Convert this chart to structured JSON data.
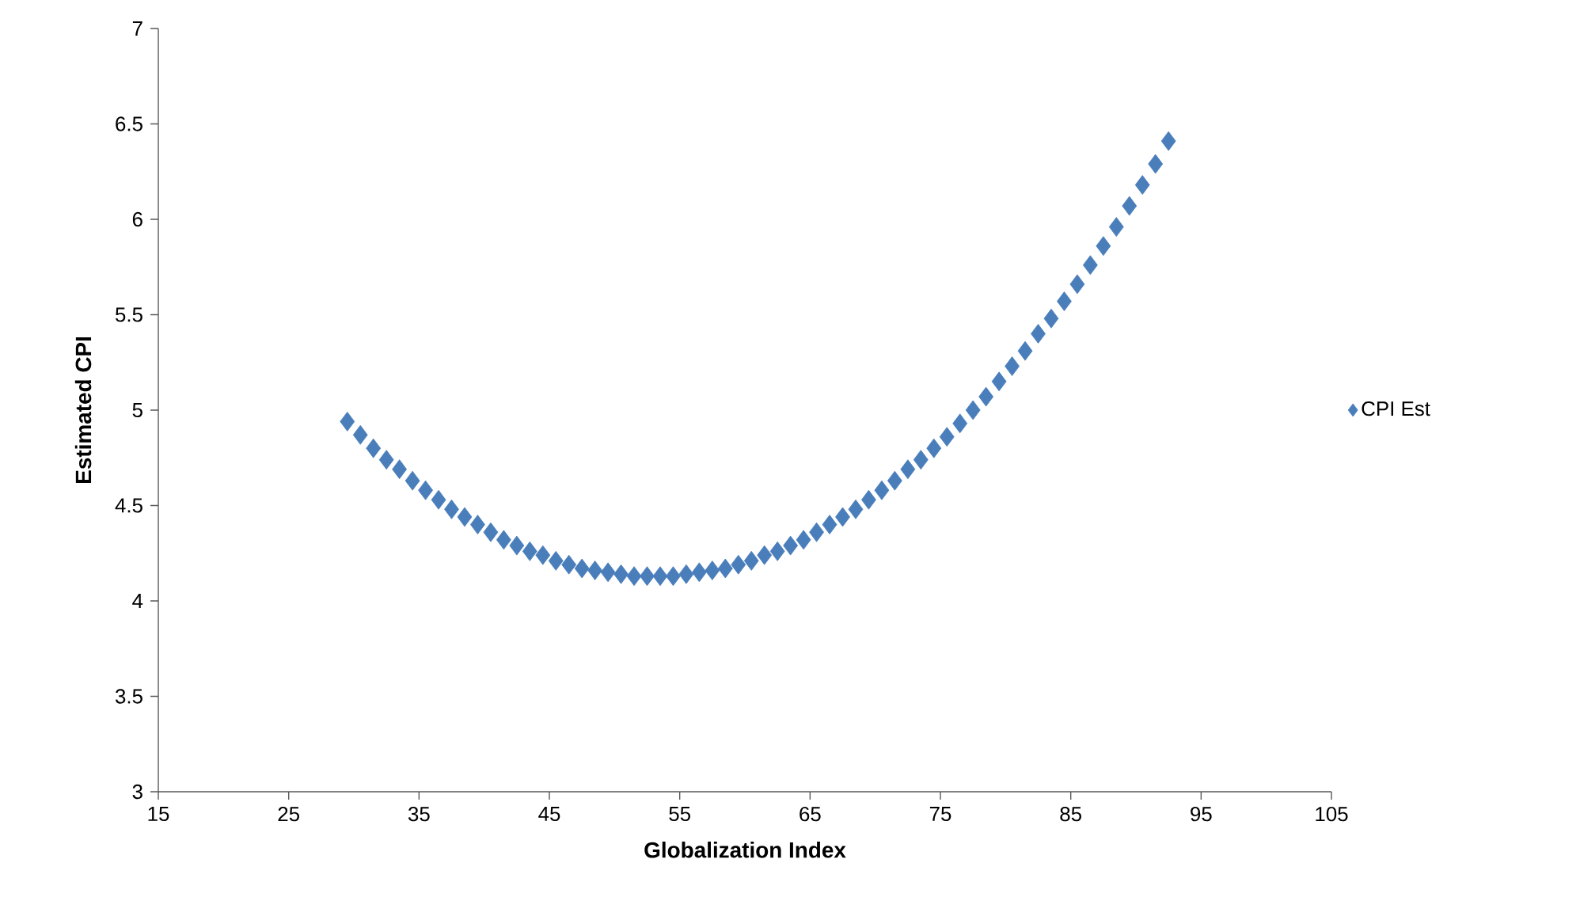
{
  "chart_data": {
    "type": "scatter",
    "xlabel": "Globalization Index",
    "ylabel": "Estimated CPI",
    "xlim": [
      15,
      105
    ],
    "xticks": [
      15,
      25,
      35,
      45,
      55,
      65,
      75,
      85,
      95,
      105
    ],
    "ylim": [
      3,
      7
    ],
    "yticks": [
      3,
      3.5,
      4,
      4.5,
      5,
      5.5,
      6,
      6.5,
      7
    ],
    "grid": false,
    "legend": "right",
    "marker": "diamond",
    "series": [
      {
        "name": "CPI Est",
        "color": "#4a7ebb",
        "x": [
          29.5,
          30.5,
          31.5,
          32.5,
          33.5,
          34.5,
          35.5,
          36.5,
          37.5,
          38.5,
          39.5,
          40.5,
          41.5,
          42.5,
          43.5,
          44.5,
          45.5,
          46.5,
          47.5,
          48.5,
          49.5,
          50.5,
          51.5,
          52.5,
          53.5,
          54.5,
          55.5,
          56.5,
          57.5,
          58.5,
          59.5,
          60.5,
          61.5,
          62.5,
          63.5,
          64.5,
          65.5,
          66.5,
          67.5,
          68.5,
          69.5,
          70.5,
          71.5,
          72.5,
          73.5,
          74.5,
          75.5,
          76.5,
          77.5,
          78.5,
          79.5,
          80.5,
          81.5,
          82.5,
          83.5,
          84.5,
          85.5,
          86.5,
          87.5,
          88.5,
          89.5,
          90.5,
          91.5,
          92.5
        ],
        "values": [
          4.94,
          4.87,
          4.8,
          4.74,
          4.69,
          4.63,
          4.58,
          4.53,
          4.48,
          4.44,
          4.4,
          4.36,
          4.32,
          4.29,
          4.26,
          4.24,
          4.21,
          4.19,
          4.17,
          4.16,
          4.15,
          4.14,
          4.13,
          4.13,
          4.13,
          4.13,
          4.14,
          4.15,
          4.16,
          4.17,
          4.19,
          4.21,
          4.24,
          4.26,
          4.29,
          4.32,
          4.36,
          4.4,
          4.44,
          4.48,
          4.53,
          4.58,
          4.63,
          4.69,
          4.74,
          4.8,
          4.86,
          4.93,
          5.0,
          5.07,
          5.15,
          5.23,
          5.31,
          5.4,
          5.48,
          5.57,
          5.66,
          5.76,
          5.86,
          5.96,
          6.07,
          6.18,
          6.29,
          6.41
        ]
      }
    ]
  }
}
